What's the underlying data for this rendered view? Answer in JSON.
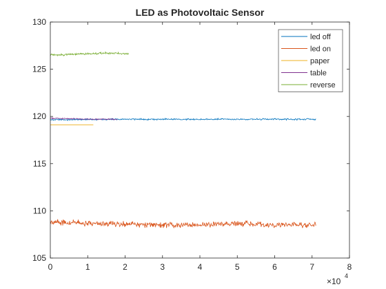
{
  "chart_data": {
    "type": "line",
    "title": "LED as Photovoltaic Sensor",
    "xlabel": "",
    "ylabel": "",
    "xlim": [
      0,
      8
    ],
    "ylim": [
      105,
      130
    ],
    "x_ticks": [
      0,
      1,
      2,
      3,
      4,
      5,
      6,
      7,
      8
    ],
    "y_ticks": [
      105,
      110,
      115,
      120,
      125,
      130
    ],
    "x_exponent": {
      "base": "×10",
      "power": "4"
    },
    "grid": false,
    "legend_position": "top-right",
    "series": [
      {
        "name": "led off",
        "color": "#0072BD",
        "x": [
          0,
          2,
          4,
          6,
          7.1
        ],
        "y": [
          119.65,
          119.7,
          119.7,
          119.7,
          119.7
        ],
        "noise": 0.08
      },
      {
        "name": "led on",
        "color": "#D95319",
        "x": [
          0,
          1,
          2,
          3,
          4,
          5,
          6,
          7.1
        ],
        "y": [
          108.8,
          108.7,
          108.6,
          108.5,
          108.5,
          108.6,
          108.5,
          108.5
        ],
        "noise": 0.3
      },
      {
        "name": "paper",
        "color": "#EDB120",
        "x": [
          0,
          1.15
        ],
        "y": [
          119.1,
          119.1
        ],
        "noise": 0.0
      },
      {
        "name": "table",
        "color": "#7E2F8E",
        "x": [
          0,
          1,
          1.8
        ],
        "y": [
          119.8,
          119.7,
          119.7
        ],
        "noise": 0.06
      },
      {
        "name": "reverse",
        "color": "#77AC30",
        "x": [
          0,
          0.5,
          1,
          1.5,
          2.1
        ],
        "y": [
          126.5,
          126.55,
          126.65,
          126.7,
          126.6
        ],
        "noise": 0.1
      }
    ]
  }
}
